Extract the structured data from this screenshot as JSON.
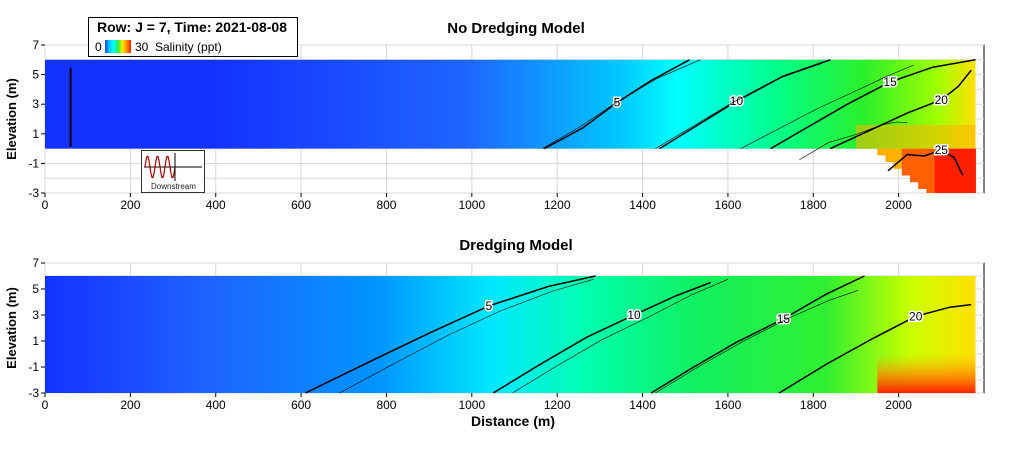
{
  "legend": {
    "title": "Row: J = 7, Time: 2021-08-08",
    "min_label": "0",
    "max_label": "30",
    "unit_label": "Salinity (ppt)"
  },
  "inset": {
    "label": "Downstream"
  },
  "chart_data": [
    {
      "type": "heatmap",
      "title": "No Dredging Model",
      "xlabel": "",
      "ylabel": "Elevation (m)",
      "xlim": [
        0,
        2200
      ],
      "ylim": [
        -3,
        7
      ],
      "x_ticks": [
        "0",
        "200",
        "400",
        "600",
        "800",
        "1000",
        "1200",
        "1400",
        "1600",
        "1800",
        "2000"
      ],
      "y_ticks": [
        "-3",
        "-1",
        "1",
        "3",
        "5",
        "7"
      ],
      "grid": true,
      "colorbar_range": [
        0,
        30
      ],
      "domain": {
        "x": [
          0,
          2180
        ],
        "surface_elevation": 6.0,
        "bed_elevation": 0.0,
        "deep_bed_x": [
          1950,
          2180
        ],
        "deep_bed_elevation": -3
      },
      "contour_labels": [
        "5",
        "10",
        "15",
        "20",
        "25"
      ],
      "contours": [
        {
          "level": 5,
          "points": [
            [
              1170,
              0
            ],
            [
              1260,
              1.4
            ],
            [
              1340,
              3.1
            ],
            [
              1420,
              4.6
            ],
            [
              1510,
              6.0
            ]
          ]
        },
        {
          "level": 10,
          "points": [
            [
              1440,
              0
            ],
            [
              1530,
              1.6
            ],
            [
              1620,
              3.2
            ],
            [
              1730,
              4.9
            ],
            [
              1840,
              6.0
            ]
          ]
        },
        {
          "level": 15,
          "points": [
            [
              1700,
              0
            ],
            [
              1790,
              1.5
            ],
            [
              1880,
              3.0
            ],
            [
              1980,
              4.5
            ],
            [
              2080,
              5.5
            ],
            [
              2180,
              6.0
            ]
          ]
        },
        {
          "level": 20,
          "points": [
            [
              1840,
              0
            ],
            [
              1930,
              1.2
            ],
            [
              2020,
              2.4
            ],
            [
              2100,
              3.3
            ],
            [
              2140,
              4.2
            ],
            [
              2170,
              5.3
            ]
          ]
        },
        {
          "level": 25,
          "points": [
            [
              1975,
              -1.5
            ],
            [
              2020,
              -0.4
            ],
            [
              2060,
              -0.5
            ],
            [
              2100,
              -0.1
            ],
            [
              2130,
              -0.6
            ],
            [
              2150,
              -1.8
            ]
          ]
        }
      ]
    },
    {
      "type": "heatmap",
      "title": "Dredging Model",
      "xlabel": "Distance (m)",
      "ylabel": "Elevation (m)",
      "xlim": [
        0,
        2200
      ],
      "ylim": [
        -3,
        7
      ],
      "x_ticks": [
        "0",
        "200",
        "400",
        "600",
        "800",
        "1000",
        "1200",
        "1400",
        "1600",
        "1800",
        "2000"
      ],
      "y_ticks": [
        "-3",
        "-1",
        "1",
        "3",
        "5",
        "7"
      ],
      "grid": true,
      "colorbar_range": [
        0,
        30
      ],
      "domain": {
        "x": [
          0,
          2180
        ],
        "surface_elevation": 6.0,
        "bed_elevation": -3.0
      },
      "contour_labels": [
        "5",
        "10",
        "15",
        "20"
      ],
      "contours": [
        {
          "level": 5,
          "points": [
            [
              610,
              -3
            ],
            [
              760,
              -0.6
            ],
            [
              900,
              1.6
            ],
            [
              1040,
              3.7
            ],
            [
              1180,
              5.2
            ],
            [
              1290,
              6.0
            ]
          ]
        },
        {
          "level": 10,
          "points": [
            [
              1050,
              -3
            ],
            [
              1160,
              -0.8
            ],
            [
              1270,
              1.3
            ],
            [
              1380,
              3.0
            ],
            [
              1480,
              4.5
            ],
            [
              1560,
              5.5
            ]
          ]
        },
        {
          "level": 15,
          "points": [
            [
              1420,
              -3
            ],
            [
              1520,
              -1.0
            ],
            [
              1620,
              0.9
            ],
            [
              1730,
              2.7
            ],
            [
              1830,
              4.6
            ],
            [
              1920,
              6.0
            ]
          ]
        },
        {
          "level": 20,
          "points": [
            [
              1720,
              -3
            ],
            [
              1830,
              -0.8
            ],
            [
              1940,
              1.2
            ],
            [
              2040,
              2.9
            ],
            [
              2120,
              3.6
            ],
            [
              2170,
              3.8
            ]
          ]
        }
      ]
    }
  ]
}
